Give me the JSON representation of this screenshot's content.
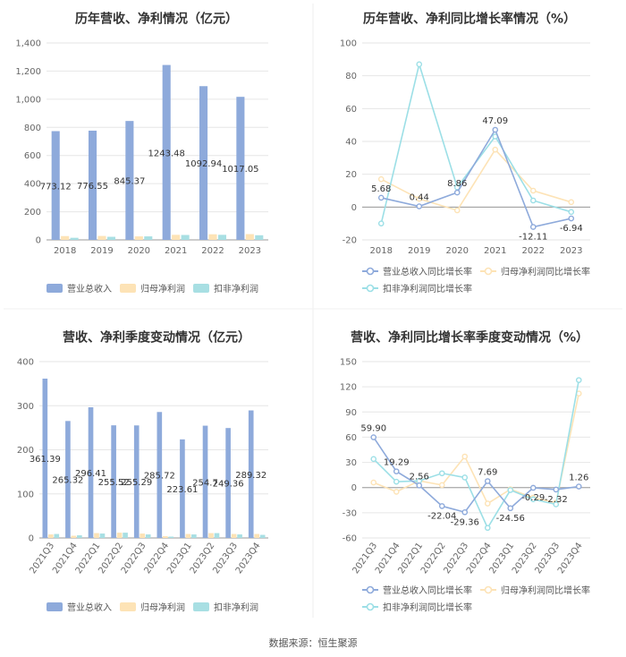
{
  "source_label": "数据来源：恒生聚源",
  "colors": {
    "revenue": "#8eaadb",
    "net_profit": "#fde3b6",
    "deducted_profit": "#a8dfe3",
    "revenue_line": "#8eaadb",
    "net_line": "#fde3b6",
    "deducted_line": "#9cdfe6"
  },
  "chart_data": [
    {
      "type": "bar",
      "title": "历年营收、净利情况（亿元）",
      "categories": [
        "2018",
        "2019",
        "2020",
        "2021",
        "2022",
        "2023"
      ],
      "y_ticks": [
        "0",
        "200",
        "400",
        "600",
        "800",
        "1,000",
        "1,200",
        "1,400"
      ],
      "ylim": [
        0,
        1400
      ],
      "series": [
        {
          "name": "营业总收入",
          "color_key": "revenue",
          "values": [
            773.12,
            776.55,
            845.37,
            1243.48,
            1092.94,
            1017.05
          ],
          "labels": [
            "773.12",
            "776.55",
            "845.37",
            "1243.48",
            "1092.94",
            "1017.05"
          ]
        },
        {
          "name": "归母净利润",
          "color_key": "net_profit",
          "values": [
            27,
            28,
            25,
            36,
            40,
            41
          ]
        },
        {
          "name": "扣非净利润",
          "color_key": "deducted_profit",
          "values": [
            15,
            22,
            25,
            35,
            36,
            33
          ]
        }
      ],
      "legend_position": "bottom"
    },
    {
      "type": "line",
      "title": "历年营收、净利同比增长率情况（%）",
      "categories": [
        "2018",
        "2019",
        "2020",
        "2021",
        "2022",
        "2023"
      ],
      "y_ticks": [
        "-20",
        "0",
        "20",
        "40",
        "60",
        "80",
        "100"
      ],
      "ylim": [
        -20,
        100
      ],
      "series": [
        {
          "name": "营业总收入同比增长率",
          "color_key": "revenue_line",
          "values": [
            5.68,
            0.44,
            8.86,
            47.09,
            -12.11,
            -6.94
          ],
          "labels": [
            "5.68",
            "0.44",
            "8.86",
            "47.09",
            "-12.11",
            "-6.94"
          ]
        },
        {
          "name": "归母净利润同比增长率",
          "color_key": "net_line",
          "values": [
            17,
            5,
            -2,
            35,
            10,
            3
          ]
        },
        {
          "name": "扣非净利润同比增长率",
          "color_key": "deducted_line",
          "values": [
            -10,
            87,
            12,
            43,
            4,
            -3
          ]
        }
      ],
      "legend_position": "bottom"
    },
    {
      "type": "bar",
      "title": "营收、净利季度变动情况（亿元）",
      "categories": [
        "2021Q3",
        "2021Q4",
        "2022Q1",
        "2022Q2",
        "2022Q3",
        "2022Q4",
        "2023Q1",
        "2023Q2",
        "2023Q3",
        "2023Q4"
      ],
      "y_ticks": [
        "0",
        "100",
        "200",
        "300",
        "400"
      ],
      "ylim": [
        0,
        400
      ],
      "series": [
        {
          "name": "营业总收入",
          "color_key": "revenue",
          "values": [
            361.39,
            265.32,
            296.41,
            255.52,
            255.29,
            285.72,
            223.61,
            254.7,
            249.36,
            289.32
          ],
          "labels": [
            "361.39",
            "265.32",
            "296.41",
            "255.52",
            "255.29",
            "285.72",
            "223.61",
            "254.7",
            "249.36",
            "289.32"
          ]
        },
        {
          "name": "归母净利润",
          "color_key": "net_profit",
          "values": [
            8,
            5,
            11,
            12,
            10,
            4,
            9,
            11,
            9,
            9
          ]
        },
        {
          "name": "扣非净利润",
          "color_key": "deducted_profit",
          "values": [
            9,
            6,
            10,
            12,
            8,
            3,
            8,
            11,
            8,
            7
          ]
        }
      ],
      "legend_position": "bottom"
    },
    {
      "type": "line",
      "title": "营收、净利同比增长率季度变动情况（%）",
      "categories": [
        "2021Q3",
        "2021Q4",
        "2022Q1",
        "2022Q2",
        "2022Q3",
        "2022Q4",
        "2023Q1",
        "2023Q2",
        "2023Q3",
        "2023Q4"
      ],
      "y_ticks": [
        "-60",
        "-30",
        "0",
        "30",
        "60",
        "90",
        "120",
        "150"
      ],
      "ylim": [
        -60,
        150
      ],
      "series": [
        {
          "name": "营业总收入同比增长率",
          "color_key": "revenue_line",
          "values": [
            59.9,
            19.29,
            2.56,
            -22.04,
            -29.36,
            7.69,
            -24.56,
            -0.29,
            -2.32,
            1.26
          ],
          "labels": [
            "59.90",
            "19.29",
            "2.56",
            "-22.04",
            "-29.36",
            "7.69",
            "-24.56",
            "-0.29",
            "-2.32",
            "1.26"
          ]
        },
        {
          "name": "归母净利润同比增长率",
          "color_key": "net_line",
          "values": [
            6,
            -5,
            8,
            3,
            37,
            -19,
            -2,
            -12,
            -18,
            112
          ]
        },
        {
          "name": "扣非净利润同比增长率",
          "color_key": "deducted_line",
          "values": [
            34,
            7,
            8,
            17,
            12,
            -48,
            -3,
            -14,
            -20,
            128
          ]
        }
      ],
      "legend_position": "bottom"
    }
  ]
}
